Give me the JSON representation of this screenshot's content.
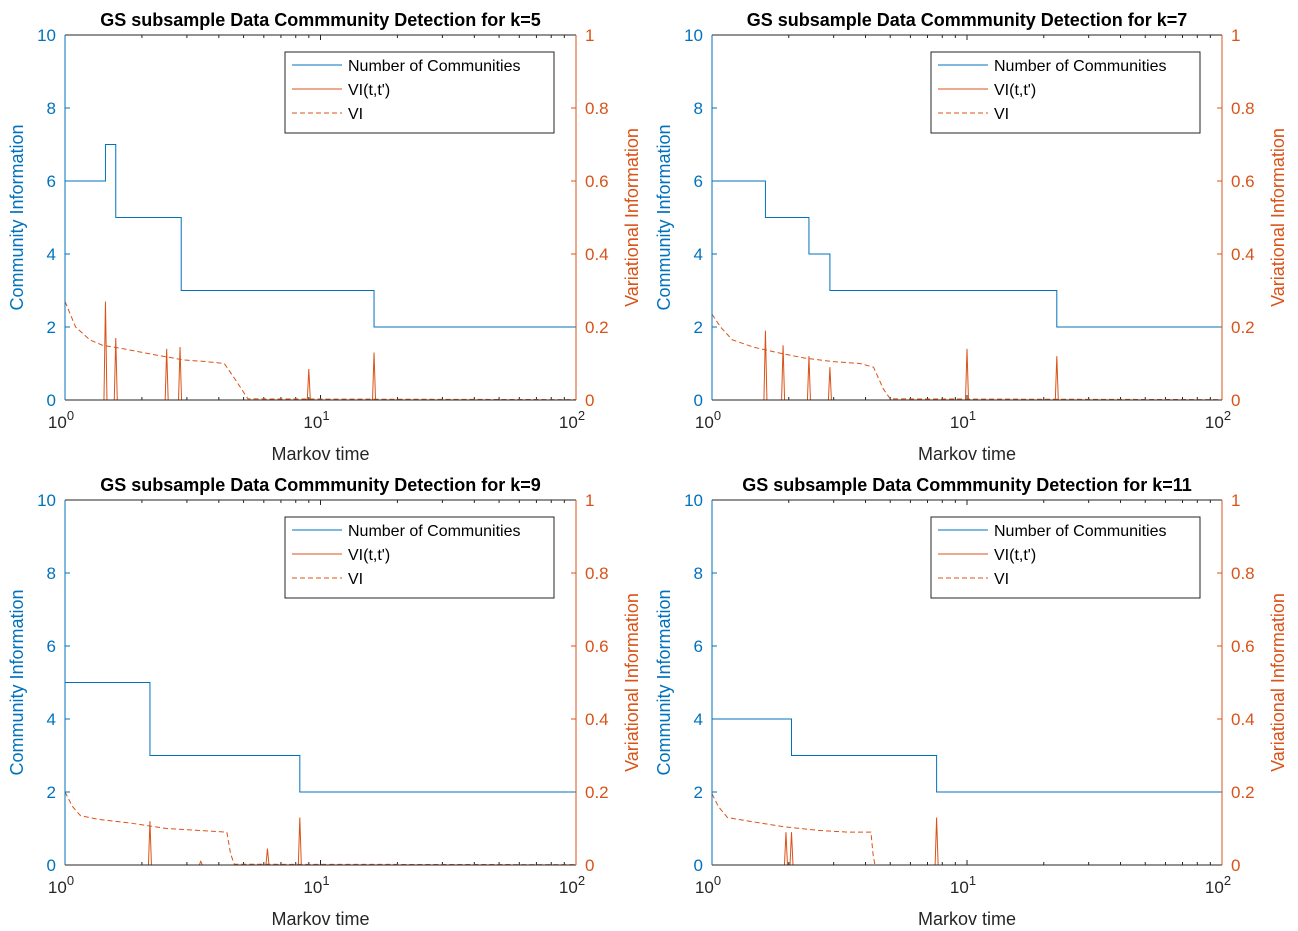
{
  "figure": {
    "colors": {
      "blue": "#0072BD",
      "orange": "#D95319",
      "axis": "#262626"
    }
  },
  "chart_data": [
    {
      "type": "line",
      "title": "GS subsample Data Commmunity Detection for k=5",
      "xlabel": "Markov time",
      "ylabel_left": "Community Information",
      "ylabel_right": "Variational Information",
      "x_scale": "log",
      "xlim": [
        1,
        100
      ],
      "ylim_left": [
        0,
        10
      ],
      "ylim_right": [
        0,
        1
      ],
      "x_ticks": [
        1,
        10,
        100
      ],
      "x_tick_labels": [
        {
          "base": "10",
          "exp": "0"
        },
        {
          "base": "10",
          "exp": "1"
        },
        {
          "base": "10",
          "exp": "2"
        }
      ],
      "y_ticks_left": [
        "0",
        "2",
        "4",
        "6",
        "8",
        "10"
      ],
      "y_ticks_right": [
        "0",
        "0.2",
        "0.4",
        "0.6",
        "0.8",
        "1"
      ],
      "legend": {
        "position": "top-right",
        "entries": [
          "Number of Communities",
          "VI(t,t')",
          "VI"
        ]
      },
      "series": [
        {
          "name": "Number of Communities",
          "axis": "left",
          "style": "solid",
          "color": "#0072BD",
          "points": [
            [
              1,
              6
            ],
            [
              1.44,
              6
            ],
            [
              1.44,
              7
            ],
            [
              1.58,
              7
            ],
            [
              1.58,
              5
            ],
            [
              2.85,
              5
            ],
            [
              2.85,
              3
            ],
            [
              16.2,
              3
            ],
            [
              16.2,
              2
            ],
            [
              100,
              2
            ]
          ]
        },
        {
          "name": "VI(t,t')",
          "axis": "right",
          "style": "solid",
          "color": "#D95319",
          "spikes": [
            [
              1.44,
              0.27
            ],
            [
              1.58,
              0.17
            ],
            [
              2.5,
              0.14
            ],
            [
              2.82,
              0.145
            ],
            [
              9.0,
              0.085
            ],
            [
              16.2,
              0.13
            ]
          ]
        },
        {
          "name": "VI",
          "axis": "right",
          "style": "dashed",
          "color": "#D95319",
          "points": [
            [
              1,
              0.27
            ],
            [
              1.1,
              0.2
            ],
            [
              1.25,
              0.165
            ],
            [
              1.4,
              0.15
            ],
            [
              1.7,
              0.14
            ],
            [
              2.2,
              0.125
            ],
            [
              2.9,
              0.11
            ],
            [
              3.6,
              0.105
            ],
            [
              4.2,
              0.1
            ],
            [
              4.6,
              0.06
            ],
            [
              5.2,
              0.003
            ],
            [
              100,
              0.001
            ]
          ]
        }
      ]
    },
    {
      "type": "line",
      "title": "GS subsample Data Commmunity Detection for k=7",
      "xlabel": "Markov time",
      "ylabel_left": "Community Information",
      "ylabel_right": "Variational Information",
      "x_scale": "log",
      "xlim": [
        1,
        100
      ],
      "ylim_left": [
        0,
        10
      ],
      "ylim_right": [
        0,
        1
      ],
      "x_ticks": [
        1,
        10,
        100
      ],
      "x_tick_labels": [
        {
          "base": "10",
          "exp": "0"
        },
        {
          "base": "10",
          "exp": "1"
        },
        {
          "base": "10",
          "exp": "2"
        }
      ],
      "y_ticks_left": [
        "0",
        "2",
        "4",
        "6",
        "8",
        "10"
      ],
      "y_ticks_right": [
        "0",
        "0.2",
        "0.4",
        "0.6",
        "0.8",
        "1"
      ],
      "legend": {
        "position": "top-right",
        "entries": [
          "Number of Communities",
          "VI(t,t')",
          "VI"
        ]
      },
      "series": [
        {
          "name": "Number of Communities",
          "axis": "left",
          "style": "solid",
          "color": "#0072BD",
          "points": [
            [
              1,
              6
            ],
            [
              1.62,
              6
            ],
            [
              1.62,
              5
            ],
            [
              2.4,
              5
            ],
            [
              2.4,
              4
            ],
            [
              2.9,
              4
            ],
            [
              2.9,
              3
            ],
            [
              22.5,
              3
            ],
            [
              22.5,
              2
            ],
            [
              100,
              2
            ]
          ]
        },
        {
          "name": "VI(t,t')",
          "axis": "right",
          "style": "solid",
          "color": "#D95319",
          "spikes": [
            [
              1.62,
              0.19
            ],
            [
              1.9,
              0.15
            ],
            [
              2.4,
              0.12
            ],
            [
              2.9,
              0.09
            ],
            [
              10.0,
              0.14
            ],
            [
              22.5,
              0.12
            ]
          ]
        },
        {
          "name": "VI",
          "axis": "right",
          "style": "dashed",
          "color": "#D95319",
          "points": [
            [
              1,
              0.235
            ],
            [
              1.08,
              0.2
            ],
            [
              1.2,
              0.165
            ],
            [
              1.45,
              0.145
            ],
            [
              1.8,
              0.13
            ],
            [
              2.3,
              0.115
            ],
            [
              3.0,
              0.105
            ],
            [
              3.8,
              0.1
            ],
            [
              4.3,
              0.09
            ],
            [
              4.7,
              0.03
            ],
            [
              5.0,
              0.003
            ],
            [
              100,
              0.001
            ]
          ]
        }
      ]
    },
    {
      "type": "line",
      "title": "GS subsample Data Commmunity Detection for k=9",
      "xlabel": "Markov time",
      "ylabel_left": "Community Information",
      "ylabel_right": "Variational Information",
      "x_scale": "log",
      "xlim": [
        1,
        100
      ],
      "ylim_left": [
        0,
        10
      ],
      "ylim_right": [
        0,
        1
      ],
      "x_ticks": [
        1,
        10,
        100
      ],
      "x_tick_labels": [
        {
          "base": "10",
          "exp": "0"
        },
        {
          "base": "10",
          "exp": "1"
        },
        {
          "base": "10",
          "exp": "2"
        }
      ],
      "y_ticks_left": [
        "0",
        "2",
        "4",
        "6",
        "8",
        "10"
      ],
      "y_ticks_right": [
        "0",
        "0.2",
        "0.4",
        "0.6",
        "0.8",
        "1"
      ],
      "legend": {
        "position": "top-right",
        "entries": [
          "Number of Communities",
          "VI(t,t')",
          "VI"
        ]
      },
      "series": [
        {
          "name": "Number of Communities",
          "axis": "left",
          "style": "solid",
          "color": "#0072BD",
          "points": [
            [
              1,
              5
            ],
            [
              2.15,
              5
            ],
            [
              2.15,
              3
            ],
            [
              8.3,
              3
            ],
            [
              8.3,
              2
            ],
            [
              100,
              2
            ]
          ]
        },
        {
          "name": "VI(t,t')",
          "axis": "right",
          "style": "solid",
          "color": "#D95319",
          "spikes": [
            [
              2.15,
              0.12
            ],
            [
              3.4,
              0.01
            ],
            [
              6.2,
              0.045
            ],
            [
              8.3,
              0.13
            ]
          ]
        },
        {
          "name": "VI",
          "axis": "right",
          "style": "dashed",
          "color": "#D95319",
          "points": [
            [
              1,
              0.2
            ],
            [
              1.07,
              0.16
            ],
            [
              1.15,
              0.135
            ],
            [
              1.35,
              0.125
            ],
            [
              1.8,
              0.115
            ],
            [
              2.5,
              0.1
            ],
            [
              3.3,
              0.095
            ],
            [
              4.3,
              0.09
            ],
            [
              4.45,
              0.03
            ],
            [
              4.6,
              0.002
            ],
            [
              100,
              0.001
            ]
          ]
        }
      ]
    },
    {
      "type": "line",
      "title": "GS subsample Data Commmunity Detection for k=11",
      "xlabel": "Markov time",
      "ylabel_left": "Community Information",
      "ylabel_right": "Variational Information",
      "x_scale": "log",
      "xlim": [
        1,
        100
      ],
      "ylim_left": [
        0,
        10
      ],
      "ylim_right": [
        0,
        1
      ],
      "x_ticks": [
        1,
        10,
        100
      ],
      "x_tick_labels": [
        {
          "base": "10",
          "exp": "0"
        },
        {
          "base": "10",
          "exp": "1"
        },
        {
          "base": "10",
          "exp": "2"
        }
      ],
      "y_ticks_left": [
        "0",
        "2",
        "4",
        "6",
        "8",
        "10"
      ],
      "y_ticks_right": [
        "0",
        "0.2",
        "0.4",
        "0.6",
        "0.8",
        "1"
      ],
      "legend": {
        "position": "top-right",
        "entries": [
          "Number of Communities",
          "VI(t,t')",
          "VI"
        ]
      },
      "series": [
        {
          "name": "Number of Communities",
          "axis": "left",
          "style": "solid",
          "color": "#0072BD",
          "points": [
            [
              1,
              4
            ],
            [
              2.05,
              4
            ],
            [
              2.05,
              3
            ],
            [
              7.6,
              3
            ],
            [
              7.6,
              2
            ],
            [
              100,
              2
            ]
          ]
        },
        {
          "name": "VI(t,t')",
          "axis": "right",
          "style": "solid",
          "color": "#D95319",
          "spikes": [
            [
              1.95,
              0.09
            ],
            [
              2.05,
              0.09
            ],
            [
              7.6,
              0.13
            ]
          ]
        },
        {
          "name": "VI",
          "axis": "right",
          "style": "dashed",
          "color": "#D95319",
          "points": [
            [
              1,
              0.195
            ],
            [
              1.06,
              0.16
            ],
            [
              1.15,
              0.13
            ],
            [
              1.4,
              0.12
            ],
            [
              1.9,
              0.105
            ],
            [
              2.6,
              0.095
            ],
            [
              3.4,
              0.09
            ],
            [
              4.2,
              0.09
            ],
            [
              4.28,
              0.03
            ],
            [
              4.35,
              0.002
            ]
          ]
        }
      ]
    }
  ]
}
